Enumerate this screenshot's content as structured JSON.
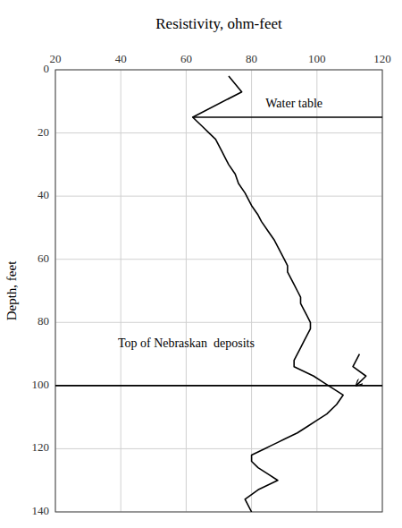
{
  "chart_data": {
    "type": "line",
    "title": "Resistivity, ohm-feet",
    "y_label": "Depth, feet",
    "xlim": [
      20,
      120
    ],
    "ylim": [
      140,
      0
    ],
    "xticks": [
      20,
      40,
      60,
      80,
      100,
      120
    ],
    "yticks": [
      0,
      20,
      40,
      60,
      80,
      100,
      120,
      140
    ],
    "grid": true,
    "series": [
      {
        "color": "#000000",
        "x": [
          73,
          77,
          62,
          63,
          64,
          65,
          67,
          69,
          70,
          71,
          72,
          73,
          75,
          76,
          78,
          80,
          82,
          83,
          85,
          87,
          88,
          89,
          90,
          91,
          91,
          92,
          93,
          94,
          95,
          95,
          96,
          97,
          98,
          98,
          97,
          96,
          95,
          94,
          93,
          93,
          95,
          97,
          99,
          102,
          105,
          108,
          106,
          103,
          100,
          97,
          94,
          92,
          90,
          88,
          86,
          84,
          82,
          80,
          80,
          82,
          85,
          88,
          82,
          78,
          80
        ],
        "values": [
          2,
          7,
          15,
          16,
          17,
          18,
          20,
          22,
          24,
          26,
          28,
          30,
          33,
          36,
          39,
          43,
          46,
          48,
          51,
          54,
          56,
          58,
          60,
          62,
          64,
          66,
          68,
          70,
          72,
          74,
          76,
          78,
          80,
          82,
          84,
          86,
          88,
          90,
          92,
          94,
          95,
          96,
          97,
          99,
          101,
          103,
          106,
          109,
          111,
          113,
          115,
          116,
          117,
          118,
          119,
          120,
          121,
          122,
          124,
          126,
          128,
          130,
          133,
          136,
          140
        ]
      },
      {
        "color": "#000000",
        "x": [
          62,
          120
        ],
        "values": [
          15,
          15
        ]
      },
      {
        "color": "#000000",
        "x": [
          20,
          120
        ],
        "values": [
          100,
          100
        ]
      },
      {
        "color": "#000000",
        "marker": "arrow",
        "x": [
          113,
          111,
          115,
          112
        ],
        "values": [
          90,
          94,
          97,
          100
        ]
      }
    ],
    "annotations": [
      {
        "text": "Water table",
        "x": 93,
        "y": 11
      },
      {
        "text": "Top of Nebraskan  deposits",
        "x": 60,
        "y": 87
      }
    ]
  }
}
